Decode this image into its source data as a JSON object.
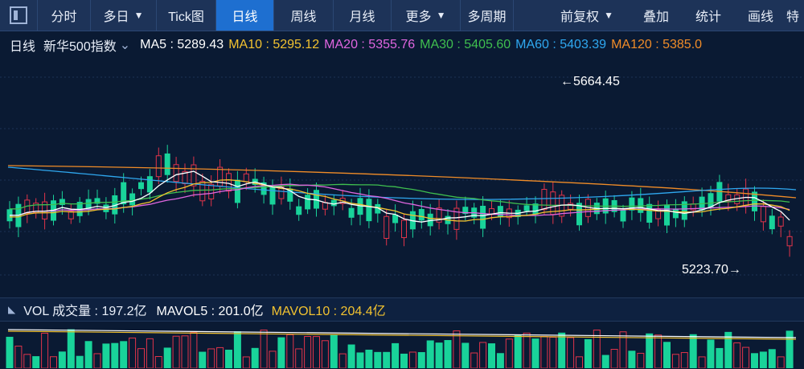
{
  "toolbar": {
    "tabs": [
      {
        "label": "分时",
        "active": false
      },
      {
        "label": "多日",
        "active": false,
        "dropdown": true
      },
      {
        "label": "Tick图",
        "active": false
      },
      {
        "label": "日线",
        "active": true
      },
      {
        "label": "周线",
        "active": false
      },
      {
        "label": "月线",
        "active": false
      },
      {
        "label": "更多",
        "active": false,
        "dropdown": true
      },
      {
        "label": "多周期",
        "active": false
      }
    ],
    "right": [
      {
        "label": "前复权",
        "dropdown": true
      },
      {
        "label": "叠加"
      },
      {
        "label": "统计"
      },
      {
        "label": "画线"
      },
      {
        "label": "特"
      }
    ]
  },
  "ma_bar": {
    "period": "日线",
    "index_name": "新华500指数",
    "items": [
      {
        "label": "MA5 : 5289.43",
        "color": "#ffffff"
      },
      {
        "label": "MA10 : 5295.12",
        "color": "#f2c230"
      },
      {
        "label": "MA20 : 5355.76",
        "color": "#e066e0"
      },
      {
        "label": "MA30 : 5405.60",
        "color": "#3fbf4f"
      },
      {
        "label": "MA60 : 5403.39",
        "color": "#2fa8f0"
      },
      {
        "label": "MA120 : 5385.0",
        "color": "#f08c28"
      }
    ]
  },
  "annotations": {
    "high": "←5664.45",
    "low": "5223.70→"
  },
  "vol_bar": {
    "title": "VOL 成交量 : 197.2亿",
    "mavol5": "MAVOL5 : 201.0亿",
    "mavol10": "MAVOL10 : 204.4亿"
  },
  "colors": {
    "up": "#e0344a",
    "down": "#19d39a",
    "ma5": "#ffffff",
    "ma10": "#f2c230",
    "ma20": "#e066e0",
    "ma30": "#3fbf4f",
    "ma60": "#2fa8f0",
    "ma120": "#f08c28"
  },
  "chart_data": {
    "type": "candlestick",
    "series_count": 6,
    "high_label": 5664.45,
    "low_label": 5223.7,
    "ma_values": {
      "MA5": 5289.43,
      "MA10": 5295.12,
      "MA20": 5355.76,
      "MA30": 5405.6,
      "MA60": 5403.39
    }
  }
}
